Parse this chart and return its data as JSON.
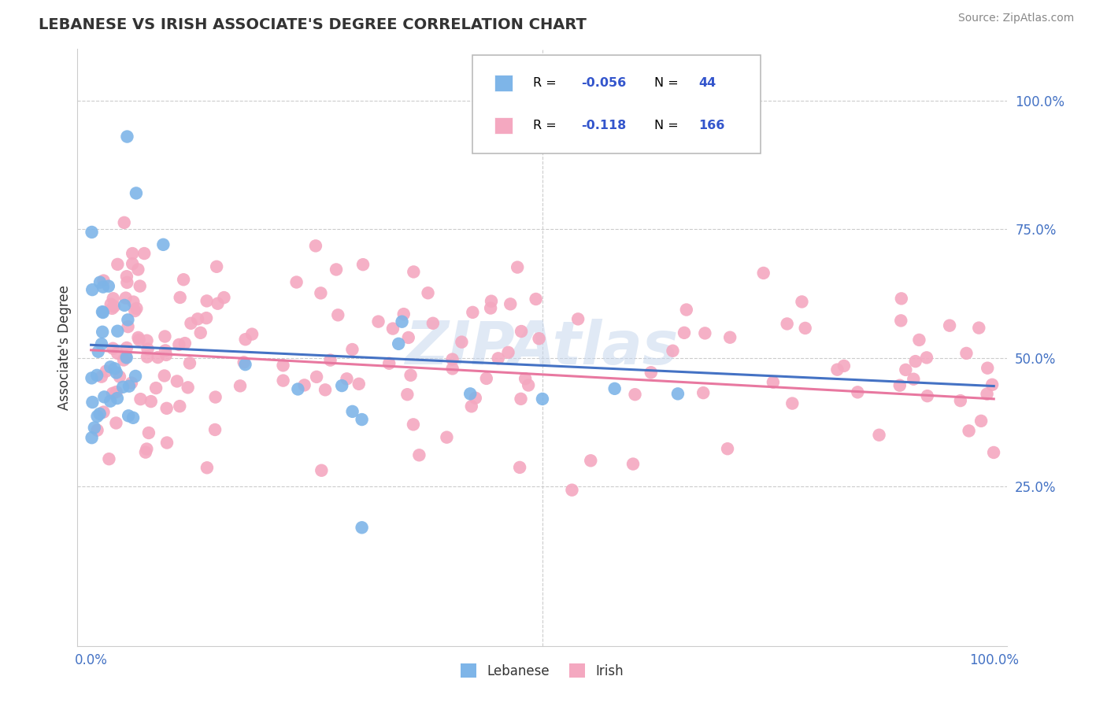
{
  "title": "LEBANESE VS IRISH ASSOCIATE'S DEGREE CORRELATION CHART",
  "source": "Source: ZipAtlas.com",
  "ylabel": "Associate's Degree",
  "lebanese_color": "#7EB5E8",
  "irish_color": "#F4A8C0",
  "trend_blue": "#4472C4",
  "trend_pink": "#E878A0",
  "R_lebanese": -0.056,
  "N_lebanese": 44,
  "R_irish": -0.118,
  "N_irish": 166,
  "watermark": "ZIPAtlas",
  "leb_intercept": 0.525,
  "leb_slope": -0.08,
  "iri_intercept": 0.515,
  "iri_slope": -0.095
}
